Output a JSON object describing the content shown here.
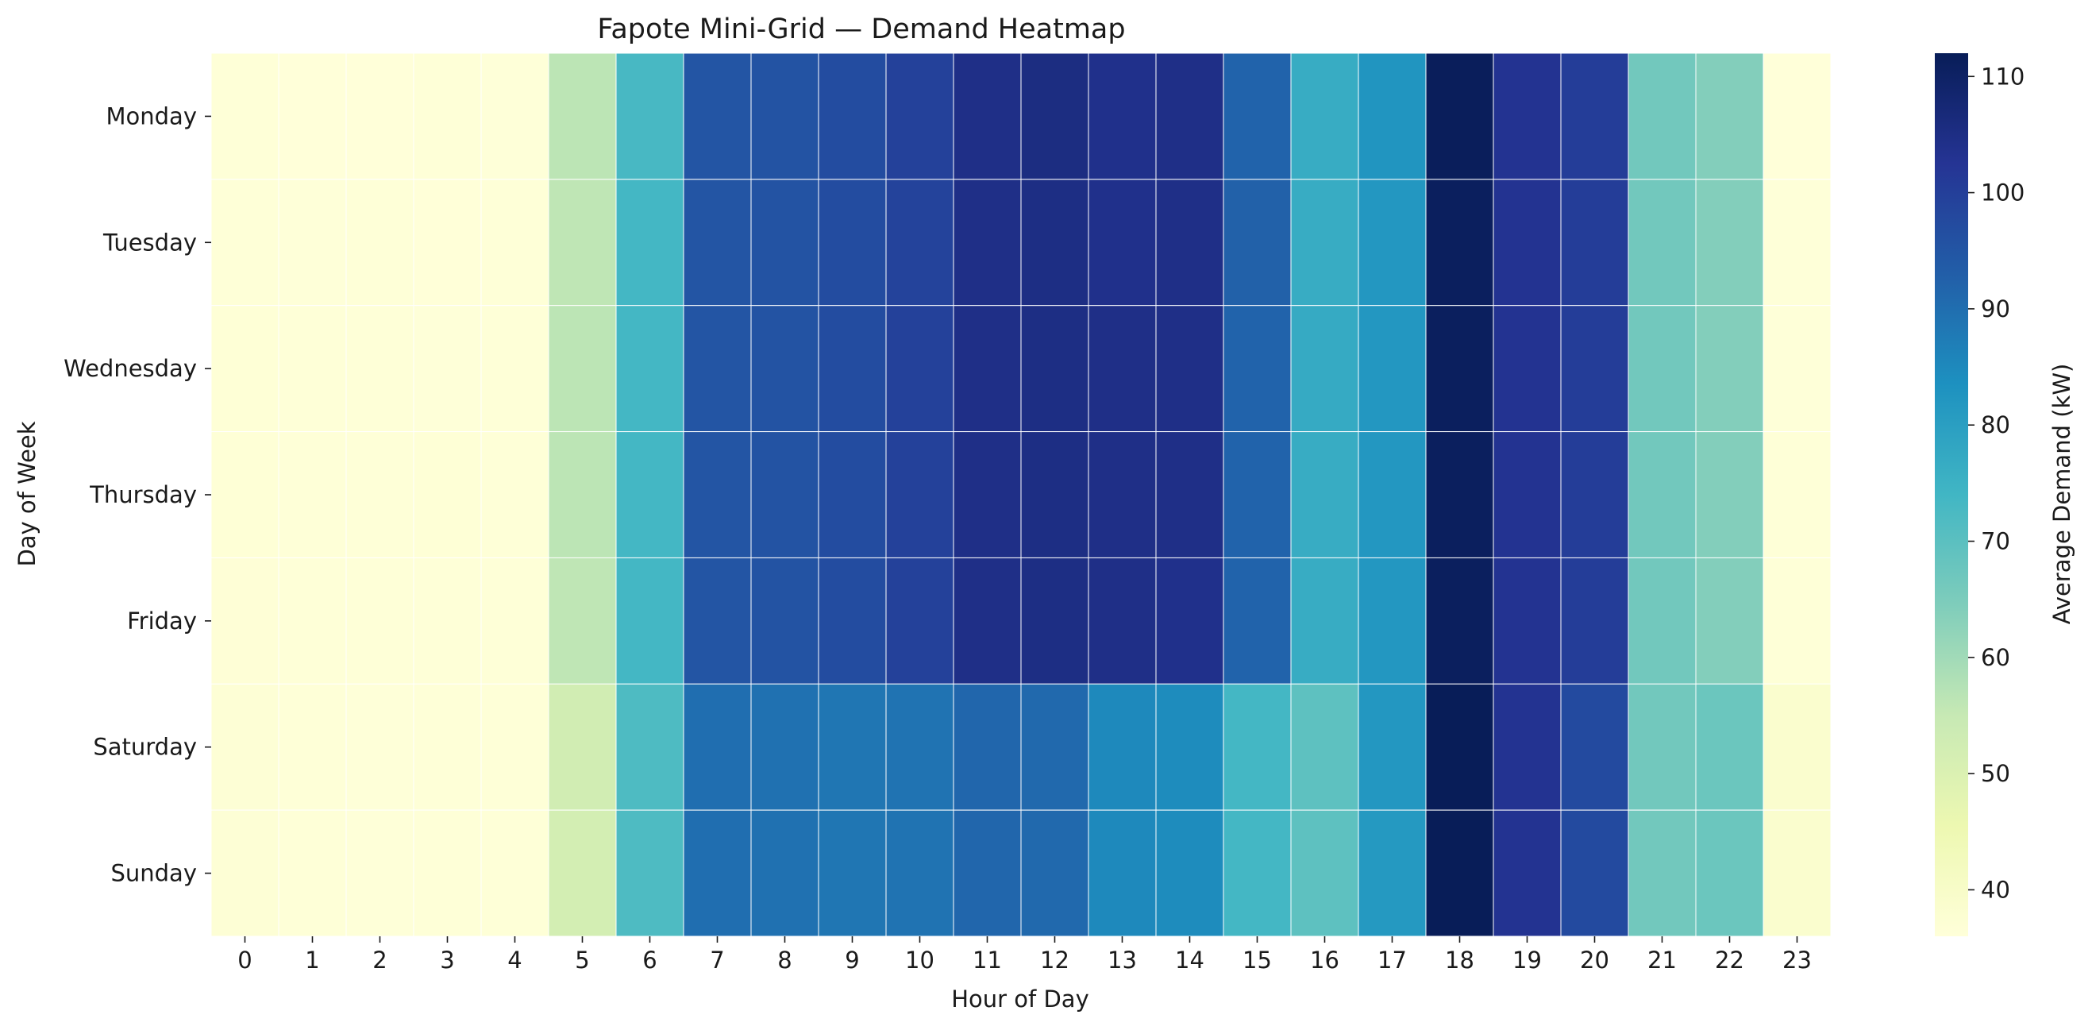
{
  "chart_data": {
    "type": "heatmap",
    "title": "Fapote Mini-Grid — Demand Heatmap",
    "xlabel": "Hour of Day",
    "ylabel": "Day of Week",
    "x_categories": [
      "0",
      "1",
      "2",
      "3",
      "4",
      "5",
      "6",
      "7",
      "8",
      "9",
      "10",
      "11",
      "12",
      "13",
      "14",
      "15",
      "16",
      "17",
      "18",
      "19",
      "20",
      "21",
      "22",
      "23"
    ],
    "y_categories": [
      "Monday",
      "Tuesday",
      "Wednesday",
      "Thursday",
      "Friday",
      "Saturday",
      "Sunday"
    ],
    "values": [
      [
        36.5,
        36.0,
        36.0,
        36.4,
        36.3,
        56.5,
        73.0,
        95.0,
        95.5,
        97.0,
        99.5,
        104.5,
        105.5,
        104.0,
        104.5,
        92.0,
        76.5,
        82.5,
        111.5,
        103.0,
        100.5,
        66.5,
        64.0,
        36.0
      ],
      [
        36.5,
        36.3,
        36.4,
        36.2,
        36.4,
        56.0,
        73.5,
        95.0,
        95.5,
        97.0,
        99.0,
        104.5,
        105.0,
        104.0,
        104.5,
        92.5,
        76.5,
        82.0,
        111.0,
        103.0,
        100.5,
        66.5,
        64.0,
        36.3
      ],
      [
        36.6,
        36.4,
        36.5,
        36.3,
        36.4,
        56.5,
        73.5,
        95.0,
        95.5,
        97.0,
        99.5,
        104.5,
        105.0,
        104.5,
        104.5,
        92.0,
        77.0,
        82.0,
        111.0,
        103.0,
        100.5,
        66.5,
        64.0,
        36.3
      ],
      [
        36.6,
        36.5,
        36.4,
        36.6,
        36.5,
        56.5,
        73.5,
        95.0,
        95.5,
        97.0,
        99.5,
        104.5,
        105.0,
        104.5,
        104.5,
        92.0,
        76.5,
        82.0,
        111.0,
        103.0,
        100.5,
        66.5,
        64.0,
        36.4
      ],
      [
        36.7,
        36.5,
        36.5,
        36.4,
        36.5,
        56.0,
        73.5,
        95.0,
        95.5,
        97.0,
        99.5,
        104.5,
        105.0,
        104.5,
        104.0,
        92.0,
        76.5,
        82.0,
        111.0,
        103.0,
        100.5,
        66.5,
        64.0,
        36.5
      ],
      [
        37.0,
        36.5,
        36.3,
        36.5,
        36.4,
        52.5,
        72.0,
        90.0,
        89.5,
        88.5,
        89.0,
        91.5,
        91.0,
        85.0,
        84.5,
        73.5,
        69.5,
        82.0,
        112.0,
        103.0,
        97.5,
        66.5,
        67.5,
        38.5
      ],
      [
        37.0,
        36.5,
        36.3,
        36.5,
        36.4,
        52.0,
        72.0,
        90.0,
        89.5,
        88.5,
        89.0,
        91.5,
        91.0,
        85.0,
        84.5,
        73.5,
        69.5,
        81.5,
        112.0,
        103.0,
        97.5,
        66.5,
        67.5,
        38.5
      ]
    ],
    "vmin": 36,
    "vmax": 112,
    "colormap": "YlGnBu",
    "colormap_stops": [
      [
        0.0,
        "#ffffd9"
      ],
      [
        0.125,
        "#edf8b1"
      ],
      [
        0.25,
        "#c7e9b4"
      ],
      [
        0.375,
        "#7fcdbb"
      ],
      [
        0.5,
        "#41b6c4"
      ],
      [
        0.625,
        "#1d91c0"
      ],
      [
        0.75,
        "#225ea8"
      ],
      [
        0.875,
        "#253494"
      ],
      [
        1.0,
        "#081d58"
      ]
    ],
    "colorbar": {
      "label": "Average Demand (kW)",
      "ticks": [
        "40",
        "50",
        "60",
        "70",
        "80",
        "90",
        "100",
        "110"
      ]
    },
    "grid_lines": true
  }
}
